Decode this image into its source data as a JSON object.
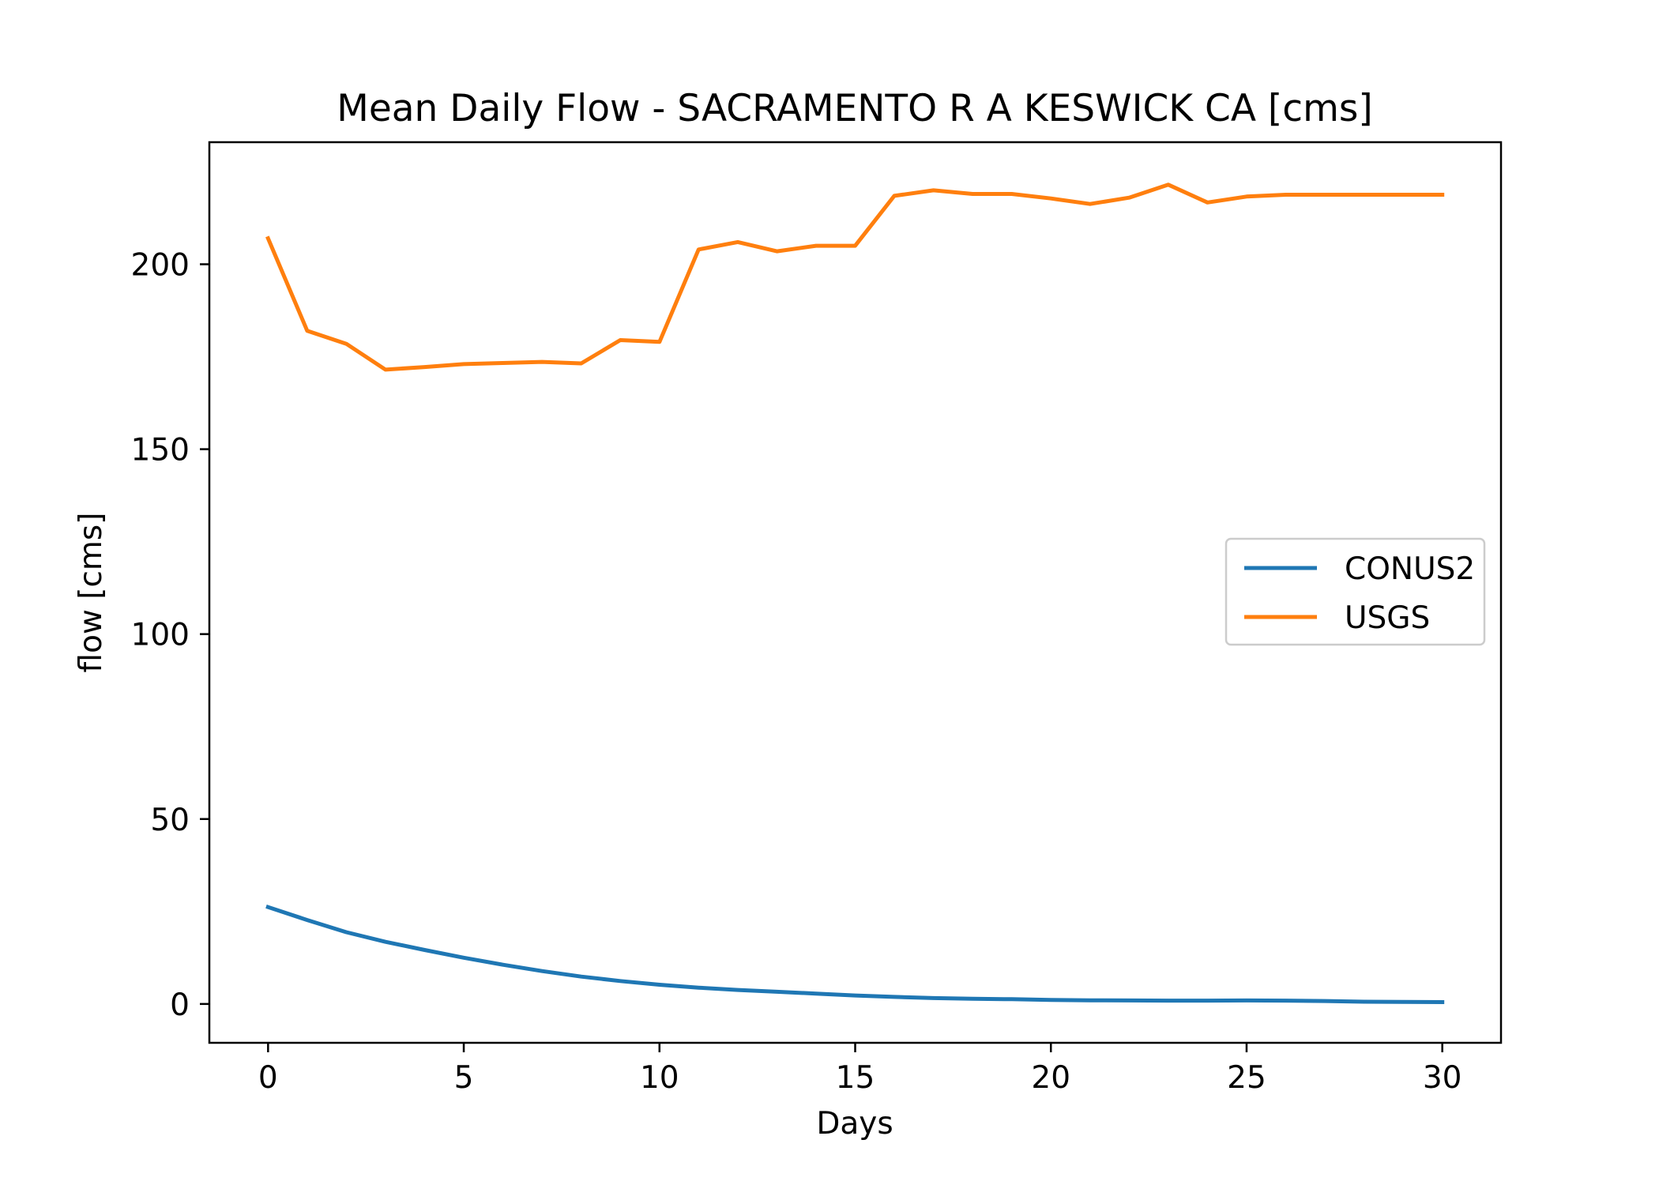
{
  "chart_data": {
    "type": "line",
    "title": "Mean Daily Flow - SACRAMENTO R A KESWICK CA [cms]",
    "xlabel": "Days",
    "ylabel": "flow [cms]",
    "xlim": [
      -1.5,
      31.5
    ],
    "ylim": [
      -10.5,
      233
    ],
    "xticks": [
      0,
      5,
      10,
      15,
      20,
      25,
      30
    ],
    "yticks": [
      0,
      50,
      100,
      150,
      200
    ],
    "grid": false,
    "legend_position": "center-right",
    "x": [
      0,
      1,
      2,
      3,
      4,
      5,
      6,
      7,
      8,
      9,
      10,
      11,
      12,
      13,
      14,
      15,
      16,
      17,
      18,
      19,
      20,
      21,
      22,
      23,
      24,
      25,
      26,
      27,
      28,
      29,
      30
    ],
    "series": [
      {
        "name": "CONUS2",
        "color": "#1f77b4",
        "values": [
          26.2,
          22.7,
          19.4,
          16.8,
          14.6,
          12.5,
          10.6,
          8.9,
          7.4,
          6.2,
          5.2,
          4.4,
          3.8,
          3.3,
          2.8,
          2.3,
          1.9,
          1.6,
          1.4,
          1.3,
          1.1,
          1.0,
          0.95,
          0.9,
          0.9,
          0.95,
          0.9,
          0.8,
          0.6,
          0.55,
          0.5
        ]
      },
      {
        "name": "USGS",
        "color": "#ff7f0e",
        "values": [
          207,
          182,
          178.5,
          171.5,
          172.2,
          173,
          173.3,
          173.6,
          173.2,
          179.5,
          179,
          204,
          206,
          203.5,
          205,
          205,
          218.5,
          220,
          219,
          219,
          217.8,
          216.3,
          218,
          221.5,
          216.7,
          218.3,
          218.8,
          218.8,
          218.8,
          218.8,
          218.8
        ]
      }
    ]
  }
}
